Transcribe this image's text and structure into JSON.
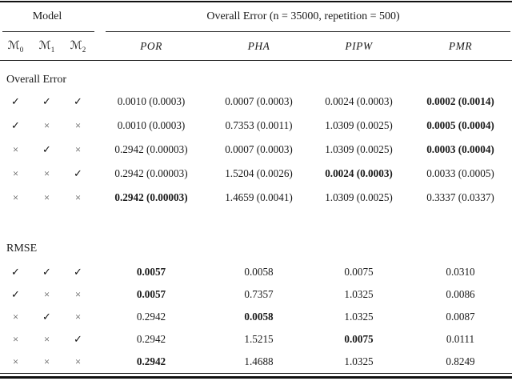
{
  "table": {
    "group_header": {
      "model": "Model",
      "error": "Overall Error (n = 35000, repetition = 500)"
    },
    "model_columns": [
      {
        "base": "ℳ",
        "sub": "0"
      },
      {
        "base": "ℳ",
        "sub": "1"
      },
      {
        "base": "ℳ",
        "sub": "2"
      }
    ],
    "method_columns": [
      "POR",
      "PHA",
      "PIPW",
      "PMR"
    ],
    "mark_glyphs": {
      "check": "✓",
      "cross": "×"
    },
    "sections": [
      {
        "label": "Overall Error",
        "rows": [
          {
            "marks": [
              "check",
              "check",
              "check"
            ],
            "values": [
              {
                "text": "0.0010 (0.0003)",
                "bold": false
              },
              {
                "text": "0.0007 (0.0003)",
                "bold": false
              },
              {
                "text": "0.0024 (0.0003)",
                "bold": false
              },
              {
                "text": "0.0002 (0.0014)",
                "bold": true
              }
            ]
          },
          {
            "marks": [
              "check",
              "cross",
              "cross"
            ],
            "values": [
              {
                "text": "0.0010 (0.0003)",
                "bold": false
              },
              {
                "text": "0.7353 (0.0011)",
                "bold": false
              },
              {
                "text": "1.0309 (0.0025)",
                "bold": false
              },
              {
                "text": "0.0005 (0.0004)",
                "bold": true
              }
            ]
          },
          {
            "marks": [
              "cross",
              "check",
              "cross"
            ],
            "values": [
              {
                "text": "0.2942 (0.00003)",
                "bold": false
              },
              {
                "text": "0.0007 (0.0003)",
                "bold": false
              },
              {
                "text": "1.0309 (0.0025)",
                "bold": false
              },
              {
                "text": "0.0003 (0.0004)",
                "bold": true
              }
            ]
          },
          {
            "marks": [
              "cross",
              "cross",
              "check"
            ],
            "values": [
              {
                "text": "0.2942 (0.00003)",
                "bold": false
              },
              {
                "text": "1.5204 (0.0026)",
                "bold": false
              },
              {
                "text": "0.0024 (0.0003)",
                "bold": true
              },
              {
                "text": "0.0033 (0.0005)",
                "bold": false
              }
            ]
          },
          {
            "marks": [
              "cross",
              "cross",
              "cross"
            ],
            "values": [
              {
                "text": "0.2942 (0.00003)",
                "bold": true
              },
              {
                "text": "1.4659 (0.0041)",
                "bold": false
              },
              {
                "text": "1.0309 (0.0025)",
                "bold": false
              },
              {
                "text": "0.3337 (0.0337)",
                "bold": false
              }
            ]
          }
        ]
      },
      {
        "label": "RMSE",
        "rows": [
          {
            "marks": [
              "check",
              "check",
              "check"
            ],
            "values": [
              {
                "text": "0.0057",
                "bold": true
              },
              {
                "text": "0.0058",
                "bold": false
              },
              {
                "text": "0.0075",
                "bold": false
              },
              {
                "text": "0.0310",
                "bold": false
              }
            ]
          },
          {
            "marks": [
              "check",
              "cross",
              "cross"
            ],
            "values": [
              {
                "text": "0.0057",
                "bold": true
              },
              {
                "text": "0.7357",
                "bold": false
              },
              {
                "text": "1.0325",
                "bold": false
              },
              {
                "text": "0.0086",
                "bold": false
              }
            ]
          },
          {
            "marks": [
              "cross",
              "check",
              "cross"
            ],
            "values": [
              {
                "text": "0.2942",
                "bold": false
              },
              {
                "text": "0.0058",
                "bold": true
              },
              {
                "text": "1.0325",
                "bold": false
              },
              {
                "text": "0.0087",
                "bold": false
              }
            ]
          },
          {
            "marks": [
              "cross",
              "cross",
              "check"
            ],
            "values": [
              {
                "text": "0.2942",
                "bold": false
              },
              {
                "text": "1.5215",
                "bold": false
              },
              {
                "text": "0.0075",
                "bold": true
              },
              {
                "text": "0.0111",
                "bold": false
              }
            ]
          },
          {
            "marks": [
              "cross",
              "cross",
              "cross"
            ],
            "values": [
              {
                "text": "0.2942",
                "bold": true
              },
              {
                "text": "1.4688",
                "bold": false
              },
              {
                "text": "1.0325",
                "bold": false
              },
              {
                "text": "0.8249",
                "bold": false
              }
            ]
          }
        ]
      }
    ]
  }
}
